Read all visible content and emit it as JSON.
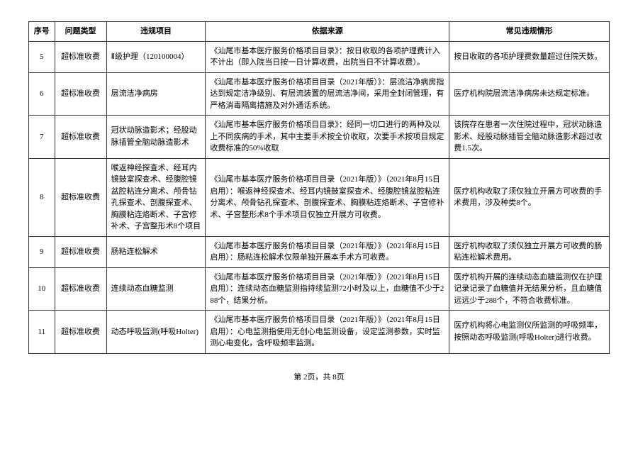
{
  "headers": {
    "idx": "序号",
    "type": "问题类型",
    "item": "违规项目",
    "basis": "依据来源",
    "case": "常见违规情形"
  },
  "rows": [
    {
      "idx": "5",
      "type": "超标准收费",
      "item": "Ⅱ级护理（120100004）",
      "basis": "《汕尾市基本医疗服务价格项目目录》：按日收取的各项护理费计入不计出（即入院当日按一日计算收费，出院当日不计算收费）。",
      "case": "按日收取的各项护理费数量超过住院天数。"
    },
    {
      "idx": "6",
      "type": "超标准收费",
      "item": "层流洁净病房",
      "basis": "《汕尾市基本医疗服务价格项目目录（2021年版）》：层流洁净病房指达到规定洁净级别、有层流装置的层流洁净间，采用全封闭管理，有严格消毒隔离措施及对外通话系统。",
      "case": "医疗机构院层流洁净病房未达规定标准。"
    },
    {
      "idx": "7",
      "type": "超标准收费",
      "item": "冠状动脉造影术；经股动脉插管全脑动脉造影术",
      "basis": "《汕尾市基本医疗服务价格项目目录》：经同一切口进行的两种及以上不同疾病的手术，其中主要手术按全价收取，次要手术按项目规定收费标准的50%收取",
      "case": "该院存在患者一次住院过程中，冠状动脉造影术、经股动脉插管全脑动脉造影术超过收费1.5次。"
    },
    {
      "idx": "8",
      "type": "超标准收费",
      "item": "喉返神经探查术、经耳内镜鼓室探查术、经腹腔镜盆腔粘连分离术、颅骨钻孔探查术、剖腹探查术、胸膜粘连烙断术、子宫修补术、子宫整形术8个项目",
      "basis": "《汕尾市基本医疗服务价格项目目录（2021年版）》（2021年8月15日启用）：喉返神经探查术、经耳内镜鼓室探查术、经腹腔镜盆腔粘连分离术、颅骨钻孔探查术、剖腹探查术、胸膜粘连烙断术、子宫修补术、子宫整形术8个手术项目仅独立开展方可收费。",
      "case": "医疗机构收取了须仅独立开展方可收费的手术费用，涉及种类8个。"
    },
    {
      "idx": "9",
      "type": "超标准收费",
      "item": "肠粘连松解术",
      "basis": "《汕尾市基本医疗服务价格项目目录（2021年版）》（2021年8月15日启用）：肠粘连松解术仅限单独开展本手术方可收费。",
      "case": "医疗机构收取了须仅独立开展方可收费的肠粘连松解术费用。"
    },
    {
      "idx": "10",
      "type": "超标准收费",
      "item": "连续动态血糖监测",
      "basis": "《汕尾市基本医疗服务价格项目目录（2021年版）》（2021年8月15日启用）：连续动态血糖监测指持续监测72小时及以上，血糖值不少于288个，结果分析。",
      "case": "医疗机构开展的连续动态血糖监测仅在护理记录记录了血糖值并无结果分析，且血糖值远远少于288个，不符合收费标准。"
    },
    {
      "idx": "11",
      "type": "超标准收费",
      "item": "动态呼吸监测(呼吸Holter)",
      "basis": "《汕尾市基本医疗服务价格项目目录（2021年版）》（2021年8月15日启用）：心电监测指使用无创心电监测设备，设定监测参数，实时监测心电变化，含呼吸频率监测。",
      "case": "医疗机构将心电监测仪所监测的呼吸频率，按照动态呼吸监测(呼吸Holter)进行收费。"
    }
  ],
  "footer": "第 2页，共 8页"
}
